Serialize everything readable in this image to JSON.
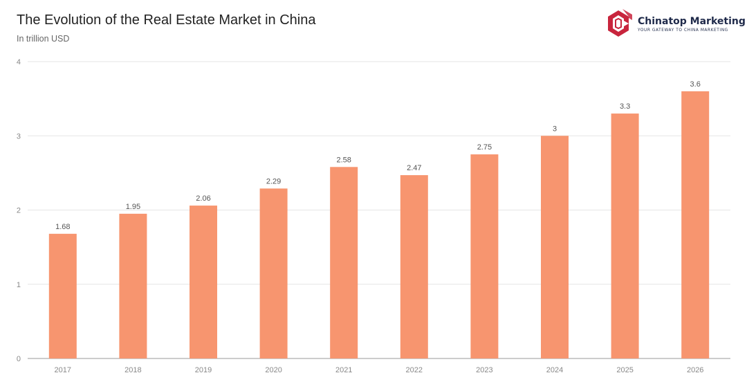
{
  "header": {
    "title": "The Evolution of the Real Estate Market in China",
    "subtitle": "In trillion USD"
  },
  "logo": {
    "name": "Chinatop Marketing",
    "tagline": "YOUR GATEWAY TO CHINA MARKETING",
    "accent_color": "#c8253d",
    "text_color": "#1f2a4a"
  },
  "chart_data": {
    "type": "bar",
    "title": "The Evolution of the Real Estate Market in China",
    "subtitle": "In trillion USD",
    "categories": [
      "2017",
      "2018",
      "2019",
      "2020",
      "2021",
      "2022",
      "2023",
      "2024",
      "2025",
      "2026"
    ],
    "values": [
      1.68,
      1.95,
      2.06,
      2.29,
      2.58,
      2.47,
      2.75,
      3,
      3.3,
      3.6
    ],
    "value_labels": [
      "1.68",
      "1.95",
      "2.06",
      "2.29",
      "2.58",
      "2.47",
      "2.75",
      "3",
      "3.3",
      "3.6"
    ],
    "ylim": [
      0,
      4
    ],
    "yticks": [
      "0",
      "1",
      "2",
      "3",
      "4"
    ],
    "xlabel": "",
    "ylabel": "",
    "grid": true,
    "legend": "none",
    "bar_color": "#f7956f"
  }
}
